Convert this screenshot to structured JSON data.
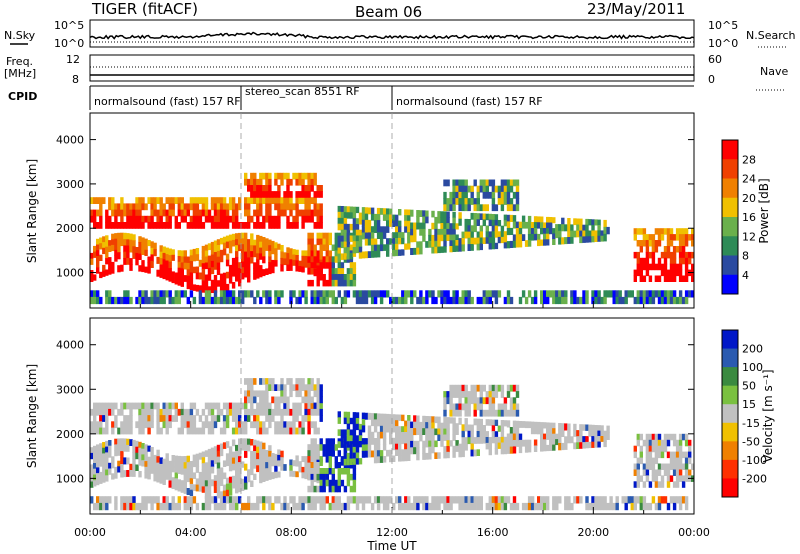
{
  "header": {
    "radar": "TIGER (fitACF)",
    "beam": "Beam 06",
    "date": "23/May/2011"
  },
  "top_panels": {
    "nsky_label": "N.Sky",
    "nsearch_label": "N.Search",
    "noise_ticks": [
      "10^5",
      "10^0"
    ],
    "freq_label_1": "Freq.",
    "freq_label_2": "[MHz]",
    "freq_ticks": [
      "12",
      "8"
    ],
    "nave_label": "Nave",
    "nave_ticks": [
      "60",
      "0"
    ],
    "cpid_label": "CPID"
  },
  "cpid_segments": [
    {
      "label": "normalsound (fast) 157 RF",
      "start_hour": 0
    },
    {
      "label": "stereo_scan 8551 RF",
      "start_hour": 6
    },
    {
      "label": "normalsound (fast) 157 RF",
      "start_hour": 12
    }
  ],
  "colors": {
    "power": [
      "#0000ff",
      "#2a4aa0",
      "#2e8b57",
      "#6ab04c",
      "#f0c000",
      "#f08000",
      "#f04000",
      "#ff0000"
    ],
    "velocity": [
      "#0018c8",
      "#2a5ab0",
      "#3a8a40",
      "#7ac040",
      "#c0c0c0",
      "#f0c000",
      "#f08000",
      "#ff3000",
      "#ff0000"
    ]
  },
  "chart_data": [
    {
      "type": "heatmap",
      "panel": "power",
      "ylabel": "Slant Range [km]",
      "y_ticks": [
        "1000",
        "2000",
        "3000",
        "4000"
      ],
      "ylim": [
        200,
        4600
      ],
      "xlim_hours": [
        0,
        24
      ],
      "colorbar_label": "Power [dB]",
      "colorbar_ticks": [
        "4",
        "8",
        "12",
        "16",
        "20",
        "24",
        "28"
      ]
    },
    {
      "type": "heatmap",
      "panel": "velocity",
      "ylabel": "Slant Range [km]",
      "y_ticks": [
        "1000",
        "2000",
        "3000",
        "4000"
      ],
      "ylim": [
        200,
        4600
      ],
      "xlim_hours": [
        0,
        24
      ],
      "colorbar_label": "Velocity [m s⁻¹]",
      "colorbar_ticks": [
        "200",
        "100",
        "50",
        "15",
        "-15",
        "-50",
        "-100",
        "-200"
      ]
    }
  ],
  "x_axis": {
    "ticks": [
      "00:00",
      "04:00",
      "08:00",
      "12:00",
      "16:00",
      "20:00",
      "00:00"
    ],
    "label": "Time UT"
  }
}
